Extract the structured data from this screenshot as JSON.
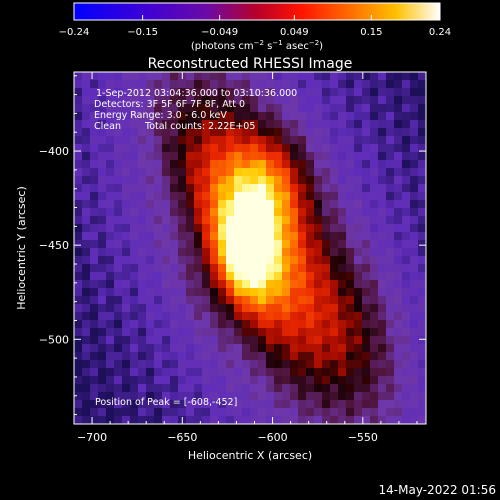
{
  "colorbar": {
    "ticks": [
      "-0.24",
      "-0.15",
      "-0.049",
      "0.049",
      "0.15",
      "0.24"
    ],
    "range": [
      -0.24,
      0.24
    ],
    "units_prefix": "(photons cm",
    "units_exp1": "−2",
    "units_mid": " s",
    "units_exp2": "−1",
    "units_suffix": " asec",
    "units_exp3": "−2",
    "units_close": ")"
  },
  "chart_data": {
    "type": "heatmap",
    "title": "Reconstructed RHESSI Image",
    "xlabel": "Heliocentric X (arcsec)",
    "ylabel": "Heliocentric Y (arcsec)",
    "xlim": [
      -710,
      -515
    ],
    "ylim": [
      -545,
      -358
    ],
    "xticks": [
      -700,
      -650,
      -600,
      -550
    ],
    "yticks": [
      -400,
      -450,
      -500
    ],
    "xtick_labels": [
      "−700",
      "−650",
      "−600",
      "−550"
    ],
    "ytick_labels": [
      "−400",
      "−450",
      "−500"
    ],
    "colormap": "rainbow-like blue-purple-red-orange-yellow-white",
    "peak_position": [
      -608,
      -452
    ],
    "annotations": {
      "time": "1-Sep-2012 03:04:36.000 to 03:10:36.000",
      "detectors": "Detectors: 3F 5F 6F 7F 8F, Att 0",
      "energy": "Energy Range: 3.0 - 6.0 keV",
      "method": "Clean",
      "counts": "Total counts: 2.22E+05",
      "peak": "Position of Peak = [-608,-452]"
    }
  },
  "footer": {
    "date": "14-May-2022 01:56"
  }
}
